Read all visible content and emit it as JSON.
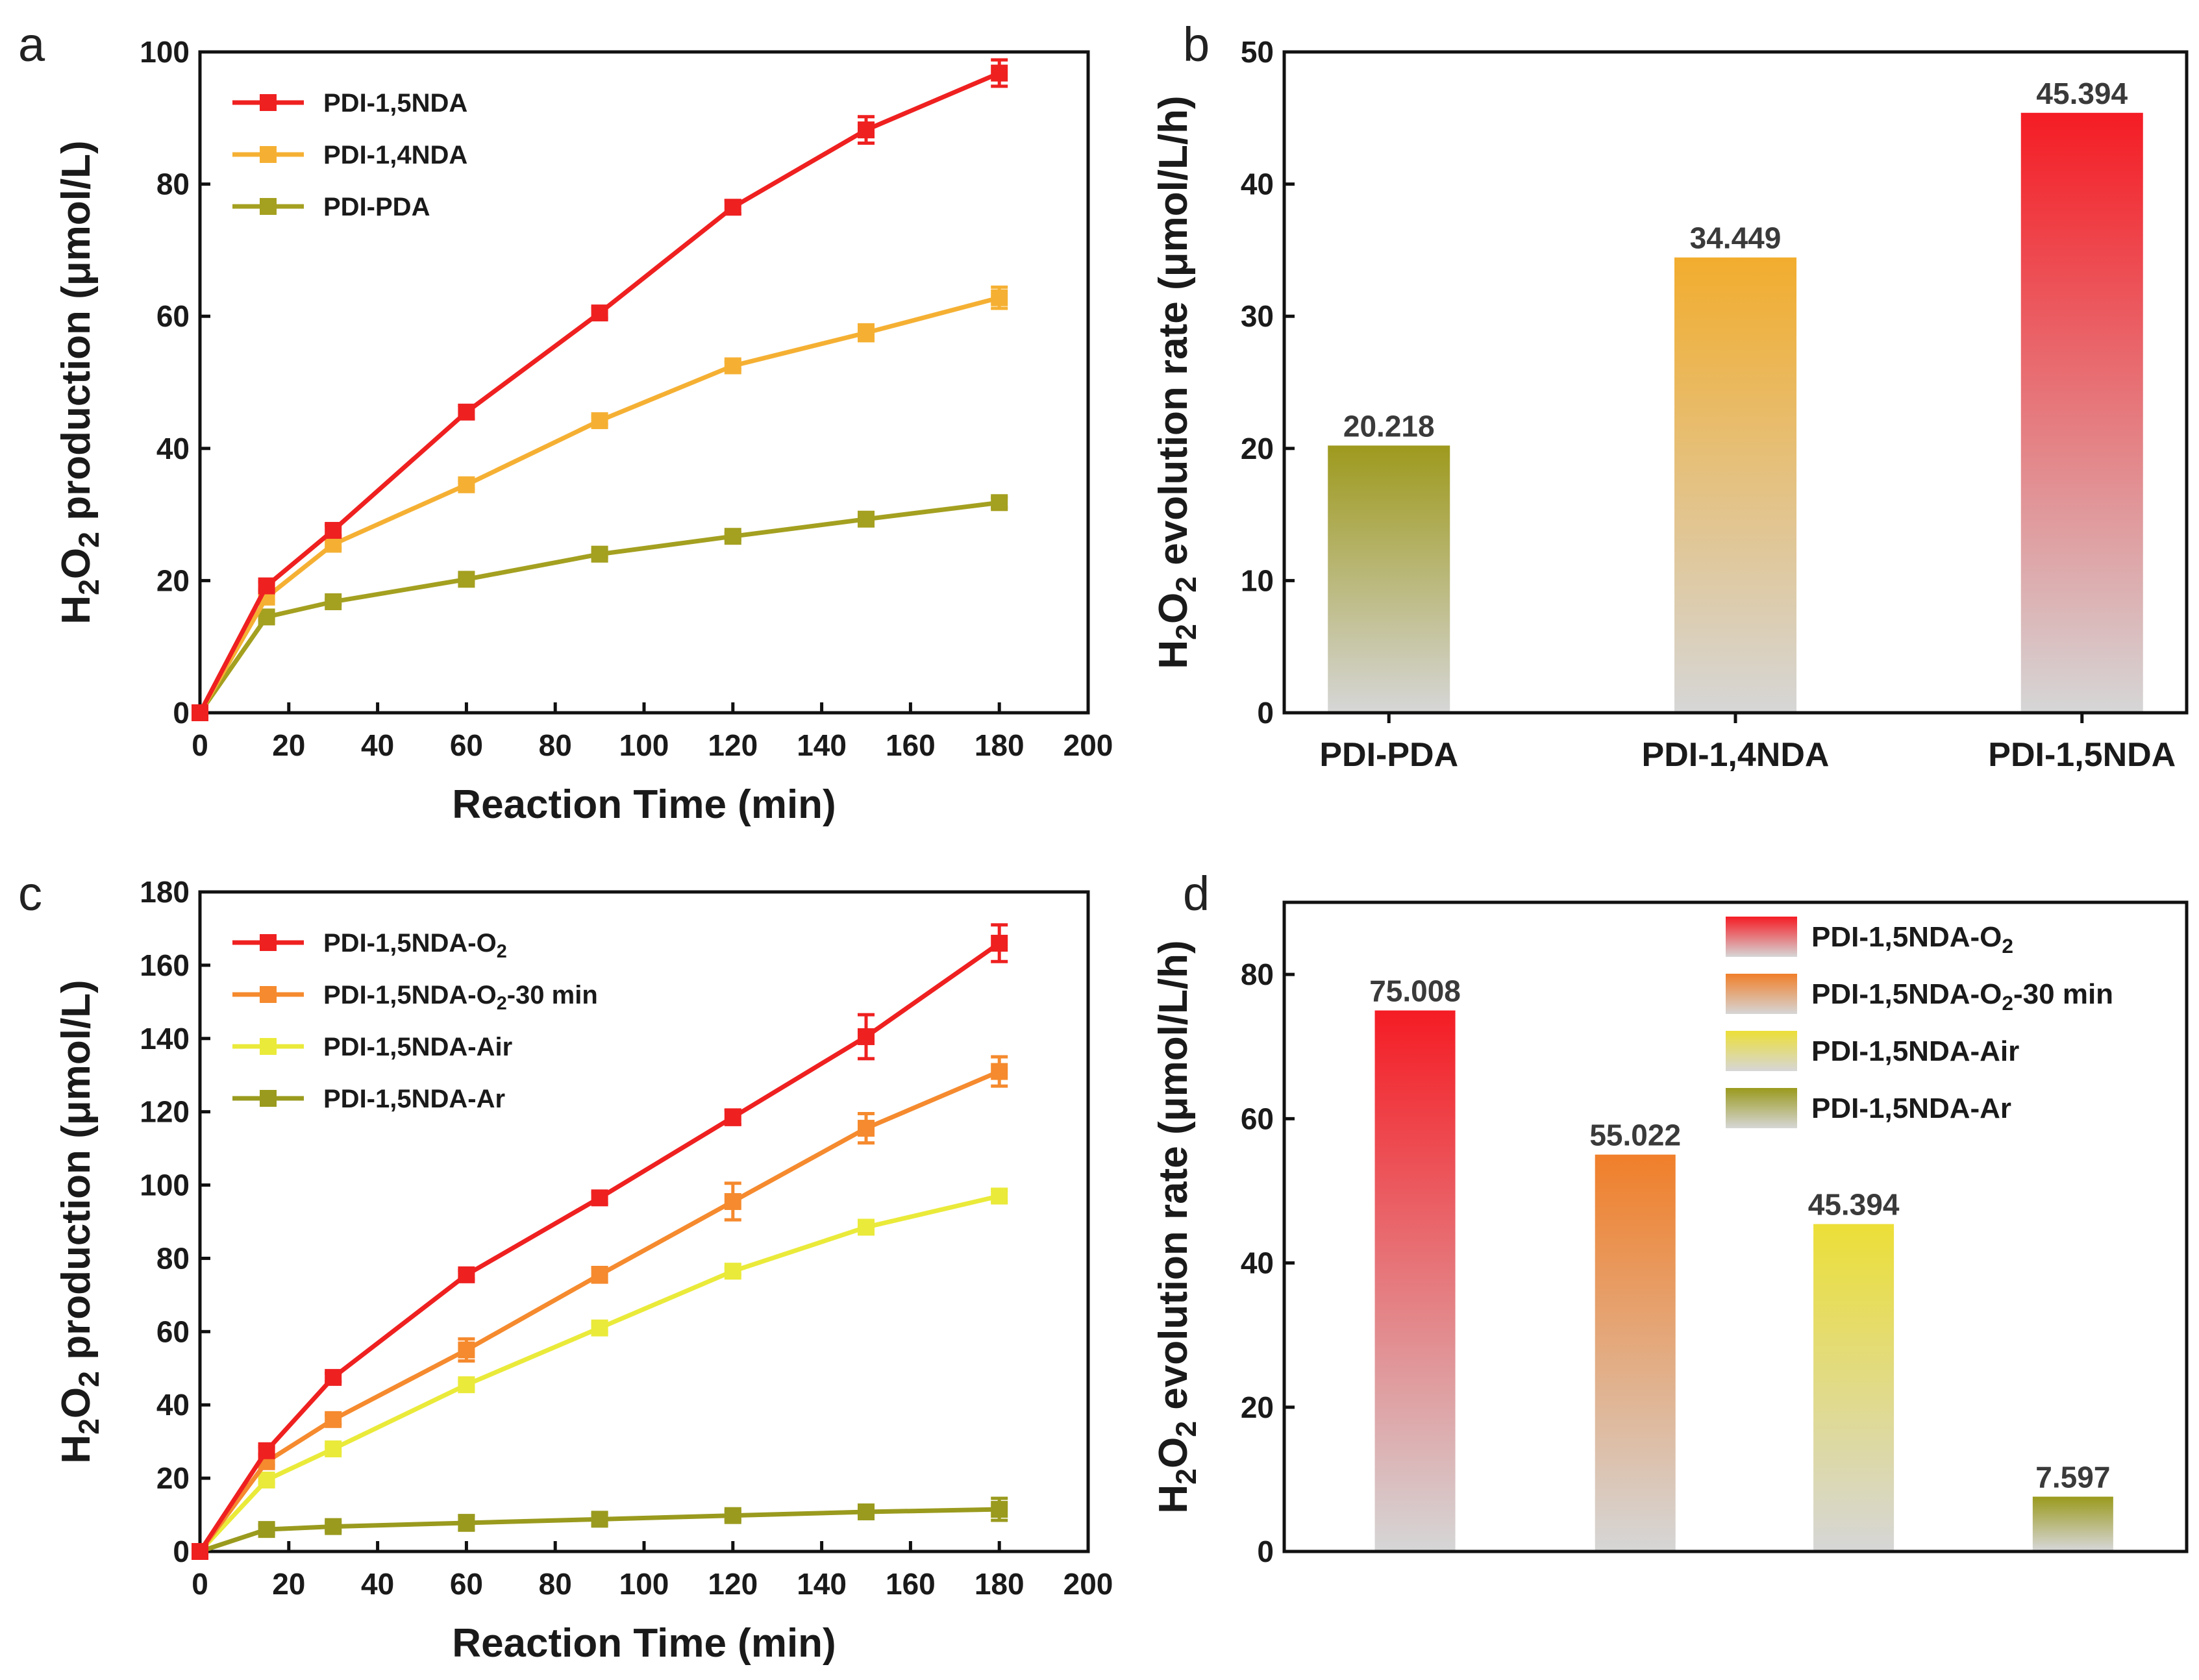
{
  "chart_data": [
    {
      "panel": "a",
      "type": "line",
      "xlabel": "Reaction Time (min)",
      "ylabel_parts": [
        "H",
        "2",
        "O",
        "2",
        " production (μmol/L)"
      ],
      "xlim": [
        0,
        200
      ],
      "ylim": [
        0,
        100
      ],
      "xticks": [
        0,
        20,
        40,
        60,
        80,
        100,
        120,
        140,
        160,
        180,
        200
      ],
      "yticks": [
        0,
        20,
        40,
        60,
        80,
        100
      ],
      "legend_position": "top-left",
      "x": [
        0,
        15,
        30,
        60,
        90,
        120,
        150,
        180
      ],
      "series": [
        {
          "name": "PDI-1,5NDA",
          "color": "#ef2020",
          "values": [
            0,
            19.2,
            27.6,
            45.5,
            60.5,
            76.5,
            88.2,
            96.8
          ],
          "errors": [
            0,
            0.6,
            0.8,
            1.0,
            0.8,
            1.0,
            2.0,
            2.0
          ]
        },
        {
          "name": "PDI-1,4NDA",
          "color": "#f5b033",
          "values": [
            0,
            17.5,
            25.5,
            34.5,
            44.2,
            52.5,
            57.5,
            62.8
          ],
          "errors": [
            0,
            0.5,
            0.6,
            0.6,
            0.6,
            0.6,
            1.2,
            1.6
          ]
        },
        {
          "name": "PDI-PDA",
          "color": "#a4a020",
          "values": [
            0,
            14.5,
            16.8,
            20.2,
            24.0,
            26.7,
            29.3,
            31.8
          ],
          "errors": [
            0,
            0.4,
            0.4,
            0.4,
            0.5,
            0.5,
            0.5,
            0.8
          ]
        }
      ]
    },
    {
      "panel": "b",
      "type": "bar",
      "ylabel_parts": [
        "H",
        "2",
        "O",
        "2",
        " evolution rate (μmol/L/h)"
      ],
      "ylim": [
        0,
        50
      ],
      "yticks": [
        0,
        10,
        20,
        30,
        40,
        50
      ],
      "categories": [
        "PDI-PDA",
        "PDI-1,4NDA",
        "PDI-1,5NDA"
      ],
      "values": [
        20.218,
        34.449,
        45.394
      ],
      "value_labels": [
        "20.218",
        "34.449",
        "45.394"
      ],
      "colors": [
        "#9e9a1e",
        "#f2ad2e",
        "#f51c24"
      ]
    },
    {
      "panel": "c",
      "type": "line",
      "xlabel": "Reaction Time (min)",
      "ylabel_parts": [
        "H",
        "2",
        "O",
        "2",
        " production (μmol/L)"
      ],
      "xlim": [
        0,
        200
      ],
      "ylim": [
        0,
        180
      ],
      "xticks": [
        0,
        20,
        40,
        60,
        80,
        100,
        120,
        140,
        160,
        180,
        200
      ],
      "yticks": [
        0,
        20,
        40,
        60,
        80,
        100,
        120,
        140,
        160,
        180
      ],
      "legend_position": "top-left",
      "x": [
        0,
        15,
        30,
        60,
        90,
        120,
        150,
        180
      ],
      "series": [
        {
          "name_parts": [
            "PDI-1,5NDA-O",
            "2",
            ""
          ],
          "color": "#ef2020",
          "values": [
            0,
            27.5,
            47.5,
            75.5,
            96.5,
            118.5,
            140.5,
            166.0
          ],
          "errors": [
            0,
            1.0,
            1.2,
            1.2,
            1.5,
            2.0,
            6.0,
            5.0
          ]
        },
        {
          "name_parts": [
            "PDI-1,5NDA-O",
            "2",
            "-30 min"
          ],
          "color": "#f58a2e",
          "values": [
            0,
            24.5,
            36.0,
            55.0,
            75.5,
            95.5,
            115.5,
            131.0
          ],
          "errors": [
            0,
            1.0,
            1.2,
            3.0,
            2.0,
            5.0,
            4.0,
            4.0
          ]
        },
        {
          "name_parts": [
            "PDI-1,5NDA-Air",
            "",
            ""
          ],
          "color": "#eaea3a",
          "values": [
            0,
            19.5,
            28.0,
            45.5,
            61.0,
            76.5,
            88.5,
            97.0
          ],
          "errors": [
            0,
            0.8,
            0.8,
            1.0,
            1.0,
            1.0,
            1.5,
            1.5
          ]
        },
        {
          "name_parts": [
            "PDI-1,5NDA-Ar",
            "",
            ""
          ],
          "color": "#9a9a1e",
          "values": [
            0,
            6.0,
            6.8,
            7.8,
            8.8,
            9.8,
            10.8,
            11.5
          ],
          "errors": [
            0,
            1.2,
            1.2,
            2.0,
            1.5,
            1.2,
            1.5,
            3.0
          ]
        }
      ]
    },
    {
      "panel": "d",
      "type": "bar",
      "ylabel_parts": [
        "H",
        "2",
        "O",
        "2",
        " evolution rate (μmol/L/h)"
      ],
      "ylim": [
        0,
        90
      ],
      "yticks": [
        0,
        20,
        40,
        60,
        80
      ],
      "legend_position": "top-right",
      "series_names": [
        [
          "PDI-1,5NDA-O",
          "2",
          ""
        ],
        [
          "PDI-1,5NDA-O",
          "2",
          "-30 min"
        ],
        [
          "PDI-1,5NDA-Air",
          "",
          ""
        ],
        [
          "PDI-1,5NDA-Ar",
          "",
          ""
        ]
      ],
      "values": [
        75.008,
        55.022,
        45.394,
        7.597
      ],
      "value_labels": [
        "75.008",
        "55.022",
        "45.394",
        "7.597"
      ],
      "colors": [
        "#f51c24",
        "#f07f2a",
        "#ecdf38",
        "#9a9a1e"
      ]
    }
  ],
  "panel_letters": [
    "a",
    "b",
    "c",
    "d"
  ]
}
